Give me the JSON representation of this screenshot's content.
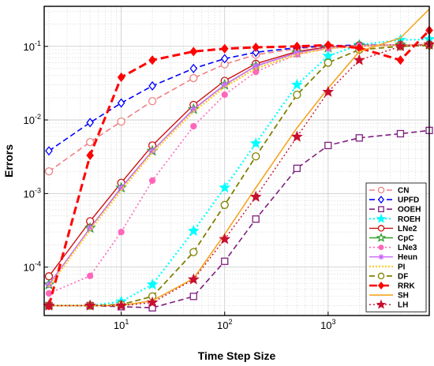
{
  "chart_data": {
    "type": "line",
    "xlabel": "Time Step Size",
    "ylabel": "Errors",
    "xscale": "log",
    "yscale": "log",
    "xlim": [
      1.8,
      9500
    ],
    "ylim": [
      2.2e-05,
      0.35
    ],
    "grid": true,
    "legend_position": "bottom-right",
    "x_ticks": [
      {
        "base": "10",
        "exp": "1",
        "value": 10
      },
      {
        "base": "10",
        "exp": "2",
        "value": 100
      },
      {
        "base": "10",
        "exp": "3",
        "value": 1000
      }
    ],
    "y_ticks": [
      {
        "base": "10",
        "exp": "-4",
        "value": 0.0001
      },
      {
        "base": "10",
        "exp": "-3",
        "value": 0.001
      },
      {
        "base": "10",
        "exp": "-2",
        "value": 0.01
      },
      {
        "base": "10",
        "exp": "-1",
        "value": 0.1
      }
    ],
    "series": [
      {
        "name": "CN",
        "color": "#f08080",
        "dash": "7,4",
        "marker": "circle",
        "fill": "none",
        "width": 1.6,
        "x": [
          2,
          5,
          10,
          20,
          50,
          100,
          200,
          500,
          1000,
          2000,
          5000,
          9500
        ],
        "y": [
          0.002,
          0.005,
          0.0095,
          0.018,
          0.037,
          0.057,
          0.077,
          0.093,
          0.1,
          0.103,
          0.104,
          0.105
        ]
      },
      {
        "name": "UPFD",
        "color": "#0000ff",
        "dash": "7,4",
        "marker": "diamond",
        "fill": "none",
        "width": 1.6,
        "x": [
          2,
          5,
          10,
          20,
          50,
          100,
          200,
          500,
          1000,
          2000,
          5000,
          9500
        ],
        "y": [
          0.0038,
          0.0092,
          0.017,
          0.029,
          0.05,
          0.068,
          0.083,
          0.096,
          0.102,
          0.104,
          0.105,
          0.105
        ]
      },
      {
        "name": "OOEH",
        "color": "#7f1f7f",
        "dash": "7,4",
        "marker": "square",
        "fill": "none",
        "width": 1.6,
        "x": [
          2,
          5,
          10,
          20,
          50,
          100,
          200,
          500,
          1000,
          2000,
          5000,
          9500
        ],
        "y": [
          3e-05,
          3e-05,
          2.9e-05,
          2.8e-05,
          4e-05,
          0.00012,
          0.00045,
          0.0022,
          0.0045,
          0.0057,
          0.0065,
          0.0072
        ]
      },
      {
        "name": "ROEH",
        "color": "#00ffff",
        "dash": "2,3",
        "marker": "star",
        "fill": "#00ffff",
        "width": 2.2,
        "x": [
          2,
          5,
          10,
          20,
          50,
          100,
          200,
          500,
          1000,
          2000,
          5000,
          9500
        ],
        "y": [
          3e-05,
          3e-05,
          3.4e-05,
          5.8e-05,
          0.00031,
          0.0012,
          0.0048,
          0.03,
          0.074,
          0.105,
          0.122,
          0.125
        ]
      },
      {
        "name": "LNe2",
        "color": "#cc1111",
        "dash": "",
        "marker": "circle",
        "fill": "none",
        "width": 1.4,
        "x": [
          2,
          5,
          10,
          20,
          50,
          100,
          200,
          500,
          1000,
          2000,
          5000,
          9500
        ],
        "y": [
          7.5e-05,
          0.00042,
          0.0014,
          0.0045,
          0.016,
          0.034,
          0.058,
          0.085,
          0.098,
          0.103,
          0.105,
          0.106
        ]
      },
      {
        "name": "CpC",
        "color": "#2ca02c",
        "dash": "",
        "marker": "star",
        "fill": "none",
        "width": 1.4,
        "x": [
          2,
          5,
          10,
          20,
          50,
          100,
          200,
          500,
          1000,
          2000,
          5000,
          9500
        ],
        "y": [
          5.8e-05,
          0.00034,
          0.0012,
          0.0038,
          0.014,
          0.03,
          0.054,
          0.082,
          0.096,
          0.102,
          0.105,
          0.106
        ]
      },
      {
        "name": "LNe3",
        "color": "#ff66bb",
        "dash": "2,3",
        "marker": "dot",
        "fill": "#ff66bb",
        "width": 1.6,
        "x": [
          2,
          5,
          10,
          20,
          50,
          100,
          200,
          500,
          1000,
          2000,
          5000,
          9500
        ],
        "y": [
          4.4e-05,
          7.6e-05,
          0.0003,
          0.0015,
          0.0082,
          0.022,
          0.045,
          0.078,
          0.094,
          0.101,
          0.104,
          0.105
        ]
      },
      {
        "name": "Heun",
        "color": "#cc66ff",
        "dash": "",
        "marker": "asterisk",
        "fill": "none",
        "width": 1.4,
        "x": [
          2,
          5,
          10,
          20,
          50,
          100,
          200,
          500,
          1000,
          2000,
          5000,
          9500
        ],
        "y": [
          5.8e-05,
          0.00034,
          0.0012,
          0.0038,
          0.014,
          0.03,
          0.054,
          0.082,
          0.096,
          0.102,
          0.105,
          0.106
        ]
      },
      {
        "name": "PI",
        "color": "#ffcc33",
        "dash": "2,2",
        "marker": "none",
        "fill": "none",
        "width": 2.6,
        "x": [
          2,
          5,
          10,
          20,
          50,
          100,
          200,
          500,
          1000,
          2000,
          5000,
          9500
        ],
        "y": [
          5.4e-05,
          0.00032,
          0.0011,
          0.0036,
          0.013,
          0.028,
          0.05,
          0.078,
          0.094,
          0.101,
          0.104,
          0.105
        ]
      },
      {
        "name": "DF",
        "color": "#808000",
        "dash": "7,4",
        "marker": "circle",
        "fill": "none",
        "width": 1.8,
        "x": [
          2,
          5,
          10,
          20,
          50,
          100,
          200,
          500,
          1000,
          2000,
          5000,
          9500
        ],
        "y": [
          3e-05,
          3e-05,
          3.1e-05,
          4e-05,
          0.00016,
          0.0007,
          0.0032,
          0.022,
          0.06,
          0.09,
          0.1,
          0.103
        ]
      },
      {
        "name": "RRK",
        "color": "#ff0000",
        "dash": "10,5",
        "marker": "diamond",
        "fill": "#ff0000",
        "width": 3,
        "x": [
          2,
          5,
          10,
          20,
          50,
          100,
          200,
          500,
          1000,
          2000,
          5000,
          9500
        ],
        "y": [
          3e-05,
          0.0033,
          0.038,
          0.065,
          0.085,
          0.093,
          0.097,
          0.1,
          0.104,
          0.095,
          0.065,
          0.165
        ]
      },
      {
        "name": "SH",
        "color": "#f5a623",
        "dash": "",
        "marker": "none",
        "fill": "none",
        "width": 1.6,
        "x": [
          2,
          5,
          10,
          20,
          50,
          100,
          200,
          500,
          1000,
          2000,
          5000,
          9500
        ],
        "y": [
          3e-05,
          3e-05,
          3e-05,
          3.5e-05,
          7e-05,
          0.00028,
          0.0012,
          0.0078,
          0.027,
          0.085,
          0.13,
          0.32
        ]
      },
      {
        "name": "LH",
        "color": "#c8102e",
        "dash": "2,3",
        "marker": "star",
        "fill": "#c8102e",
        "width": 1.4,
        "x": [
          2,
          5,
          10,
          20,
          50,
          100,
          200,
          500,
          1000,
          2000,
          5000,
          9500
        ],
        "y": [
          3e-05,
          3e-05,
          3e-05,
          3.3e-05,
          6.8e-05,
          0.00024,
          0.0009,
          0.0059,
          0.024,
          0.065,
          0.1,
          0.106
        ]
      }
    ]
  }
}
